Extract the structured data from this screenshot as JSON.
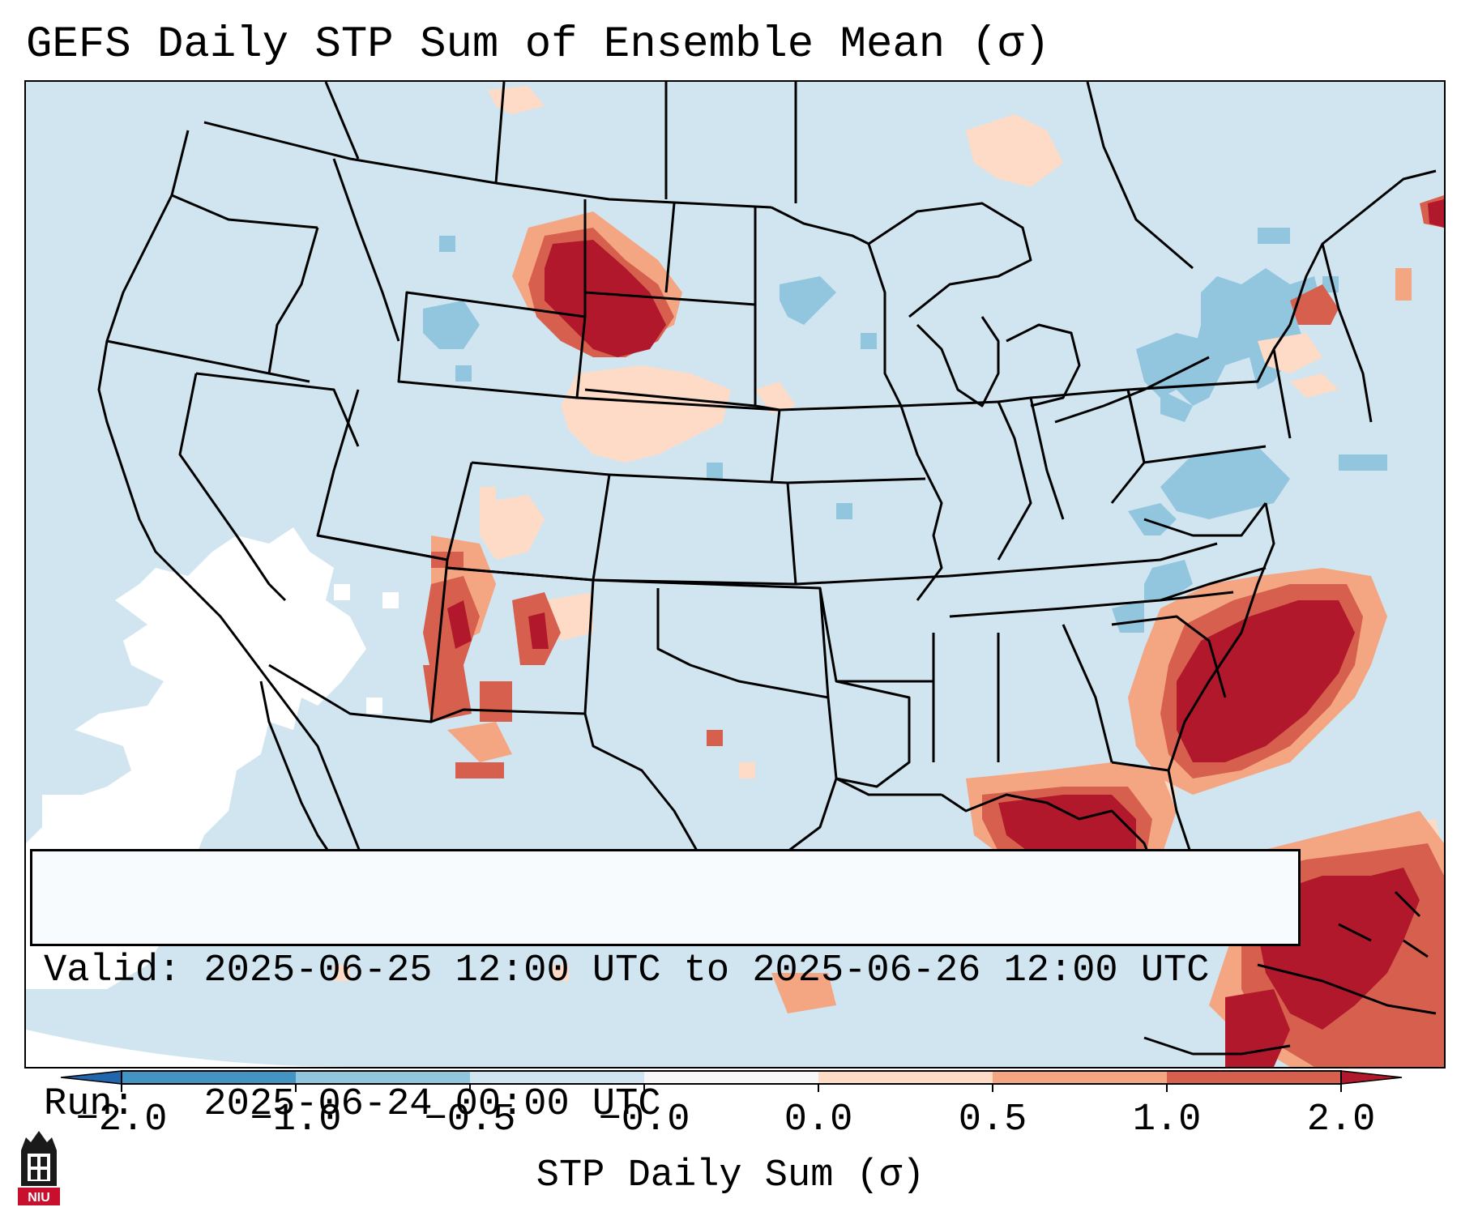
{
  "title": "GEFS Daily STP Sum of Ensemble Mean (σ)",
  "info": {
    "valid_line": "Valid: 2025-06-25 12:00 UTC to 2025-06-26 12:00 UTC",
    "run_line": "Run:   2025-06-24 00:00 UTC"
  },
  "colorbar": {
    "label": "STP Daily Sum (σ)",
    "ticks": [
      "−2.0",
      "−1.0",
      "−0.5",
      "−0.0",
      "0.0",
      "0.5",
      "1.0",
      "2.0"
    ],
    "colors": {
      "extend_low": "#2166ac",
      "b1": "#4393c3",
      "b2": "#92c5de",
      "b3": "#d1e5f0",
      "b4": "#f7f7f7",
      "b5": "#fddbc7",
      "b6": "#f4a582",
      "b7": "#d6604d",
      "extend_high": "#b2182b"
    }
  },
  "logo": {
    "text": "NIU",
    "icon": "university-tower-icon"
  },
  "map": {
    "background_color": "#d1e5f0",
    "regions": [
      {
        "name": "Northern Plains (MT/WY/SD/ND/NE)",
        "category": "above 2.0"
      },
      {
        "name": "Southeast US (Carolinas/Georgia/N Florida)",
        "category": "above 2.0"
      },
      {
        "name": "Gulf Coast / Florida Panhandle",
        "category": "above 2.0"
      },
      {
        "name": "New Mexico / Arizona",
        "category": "1.0 to 2.0"
      },
      {
        "name": "Caribbean / Bahamas",
        "category": "1.0 to 2.0"
      },
      {
        "name": "Great Lakes / Northeast",
        "category": "-1.0 to -0.5"
      },
      {
        "name": "California / Pacific",
        "category": "-0.0 to 0.0"
      }
    ]
  }
}
